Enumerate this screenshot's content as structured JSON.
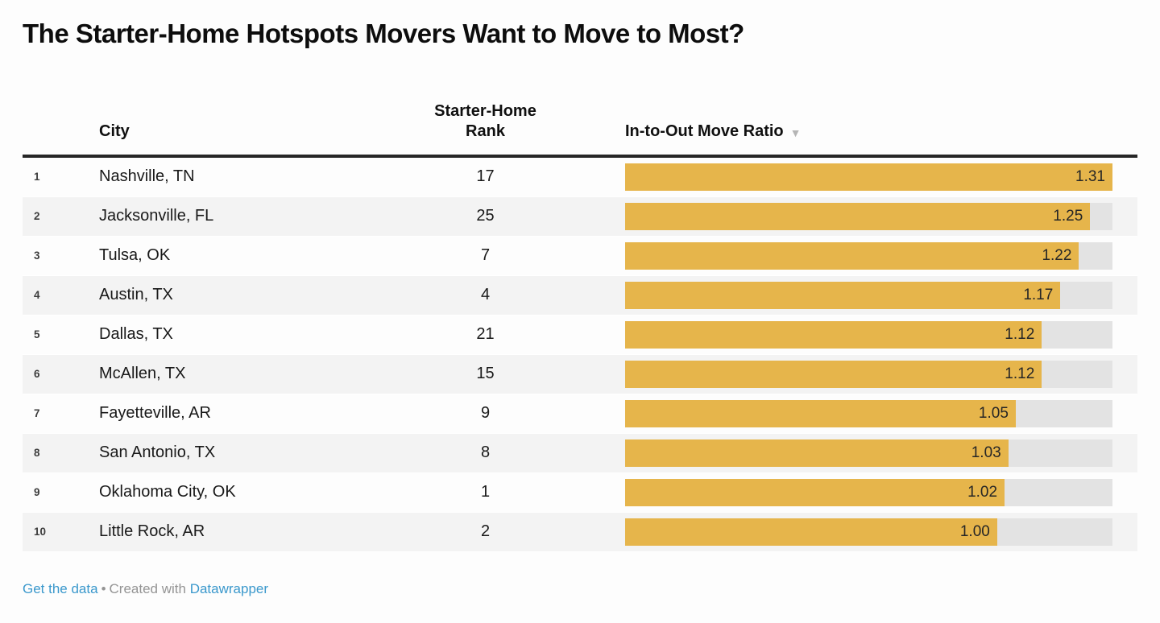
{
  "title": "The Starter-Home Hotspots Movers Want to Move to Most?",
  "table": {
    "header": {
      "city": "City",
      "rank": "Starter-Home Rank",
      "ratio": "In-to-Out Move Ratio"
    },
    "sort_icon": "▼"
  },
  "footer": {
    "get_data": "Get the data",
    "separator": "•",
    "created_with": "Created with",
    "datawrapper": "Datawrapper"
  },
  "colors": {
    "bar": "#e6b54b",
    "track": "#e3e3e3",
    "zebra": "#f3f3f3",
    "link": "#3a98cc",
    "rule": "#262626"
  },
  "chart_data": {
    "type": "table",
    "title": "The Starter-Home Hotspots Movers Want to Move to Most?",
    "columns": [
      "",
      "City",
      "Starter-Home Rank",
      "In-to-Out Move Ratio"
    ],
    "sorted_by": {
      "column": "In-to-Out Move Ratio",
      "direction": "desc"
    },
    "bar_column": "In-to-Out Move Ratio",
    "bar_scale": {
      "min": 0,
      "max": 1.31
    },
    "rows": [
      {
        "index": "1",
        "city": "Nashville, TN",
        "rank": "17",
        "ratio": 1.31,
        "ratio_label": "1.31"
      },
      {
        "index": "2",
        "city": "Jacksonville, FL",
        "rank": "25",
        "ratio": 1.25,
        "ratio_label": "1.25"
      },
      {
        "index": "3",
        "city": "Tulsa, OK",
        "rank": "7",
        "ratio": 1.22,
        "ratio_label": "1.22"
      },
      {
        "index": "4",
        "city": "Austin, TX",
        "rank": "4",
        "ratio": 1.17,
        "ratio_label": "1.17"
      },
      {
        "index": "5",
        "city": "Dallas, TX",
        "rank": "21",
        "ratio": 1.12,
        "ratio_label": "1.12"
      },
      {
        "index": "6",
        "city": "McAllen, TX",
        "rank": "15",
        "ratio": 1.12,
        "ratio_label": "1.12"
      },
      {
        "index": "7",
        "city": "Fayetteville, AR",
        "rank": "9",
        "ratio": 1.05,
        "ratio_label": "1.05"
      },
      {
        "index": "8",
        "city": "San Antonio, TX",
        "rank": "8",
        "ratio": 1.03,
        "ratio_label": "1.03"
      },
      {
        "index": "9",
        "city": "Oklahoma City, OK",
        "rank": "1",
        "ratio": 1.02,
        "ratio_label": "1.02"
      },
      {
        "index": "10",
        "city": "Little Rock, AR",
        "rank": "2",
        "ratio": 1.0,
        "ratio_label": "1.00"
      }
    ]
  }
}
